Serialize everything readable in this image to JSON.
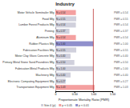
{
  "chart_data": {
    "type": "bar",
    "orientation": "horizontal",
    "title": "Industry",
    "xlabel": "Proportionate Mortality Ratio (PMR)",
    "categories": [
      "Motor Vehicle Semitrailer Mfg",
      "Food Mfg",
      "Lumber Forest Products Mfg",
      "Printing",
      "Aluminum Mfg",
      "Rubber Plastics Mfg",
      "Fabrication Facilities Mfg",
      "Motor Clay Glass Concrete Mfg",
      "Primary Metal Stone Sand Foundries Mfg",
      "Fabrication Metal Products Mfg",
      "Machinery Mfg",
      "Electronic Computing Equipment Mfg",
      "Transportation Equipment Mfg"
    ],
    "values": [
      0.54,
      0.55,
      0.54,
      0.37,
      0.54,
      1.0,
      0.55,
      0.4,
      0.5,
      1.0,
      0.4,
      0.27,
      1.03
    ],
    "colors": [
      "#f4a0a0",
      "#d0d0dc",
      "#d0d0dc",
      "#d0d0dc",
      "#f4a0a0",
      "#9090cc",
      "#d0d0dc",
      "#d0d0dc",
      "#d0d0dc",
      "#d0d0dc",
      "#d0d0dc",
      "#d0d0dc",
      "#f4a0a0"
    ],
    "data_labels": true,
    "value_labels": [
      "PMR = 0.54",
      "PMR = 0.55",
      "PMR = 0.54",
      "PMR = 0.37",
      "PMR = 0.54",
      "PMR = 1.00",
      "PMR = 0.55",
      "PMR = 0.40",
      "PMR = 0.50",
      "PMR = 1.00",
      "PMR = 0.40",
      "PMR = 0.27",
      "PMR = 1.03"
    ],
    "annotations": [
      "N = 0.54",
      "N = 0.55",
      "N = 0.54",
      "N = 0.37",
      "N = 0.54",
      "N = 1.00",
      "N = 0.55",
      "N = 0.40",
      "N = 0.50",
      "N = 1.00",
      "N = 0.40",
      "N = 0.27",
      "N = 1.03"
    ],
    "ref_line": {
      "value": 1.0,
      "color": "#bb3333"
    },
    "xlim": [
      0,
      1.5
    ],
    "xticks": [
      0,
      {
        "value": 0.5,
        "label": "0.50"
      },
      {
        "value": 1.0,
        "label": "1.00"
      },
      {
        "value": 1.5,
        "label": "1.50"
      }
    ],
    "grid": false,
    "legend": "bottom",
    "legend_items": [
      {
        "label": "Site 4 (p)",
        "color": "#d0d0dc"
      },
      {
        "label": "p < 0.05",
        "color": "#f4a0a0"
      },
      {
        "label": "p < 0.01",
        "color": "#9090cc"
      }
    ]
  }
}
